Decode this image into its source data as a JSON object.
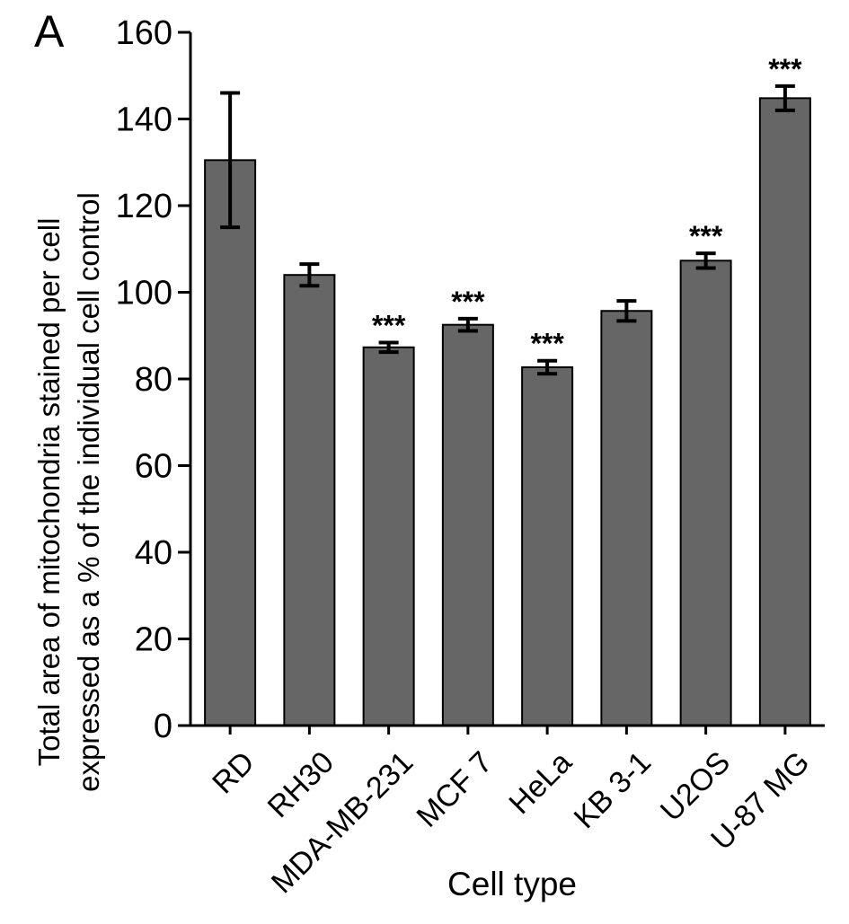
{
  "chart_data": {
    "type": "bar",
    "panel_label": "A",
    "title": "",
    "xlabel": "Cell type",
    "ylabel_lines": [
      "Total area of mitochondria stained per cell",
      "expressed as a % of the individual cell control"
    ],
    "ylim": [
      0,
      160
    ],
    "yticks": [
      0,
      20,
      40,
      60,
      80,
      100,
      120,
      140,
      160
    ],
    "categories": [
      "RD",
      "RH30",
      "MDA-MB-231",
      "MCF 7",
      "HeLa",
      "KB 3-1",
      "U2OS",
      "U-87 MG"
    ],
    "values": [
      130.5,
      104,
      87.3,
      92.5,
      82.7,
      95.7,
      107.3,
      144.8
    ],
    "error": [
      15.5,
      2.5,
      1.1,
      1.4,
      1.5,
      2.3,
      1.7,
      2.8
    ],
    "significance": [
      "",
      "",
      "***",
      "***",
      "***",
      "",
      "***",
      "***"
    ],
    "bar_color": "#666666",
    "grid": false,
    "legend": "none"
  }
}
